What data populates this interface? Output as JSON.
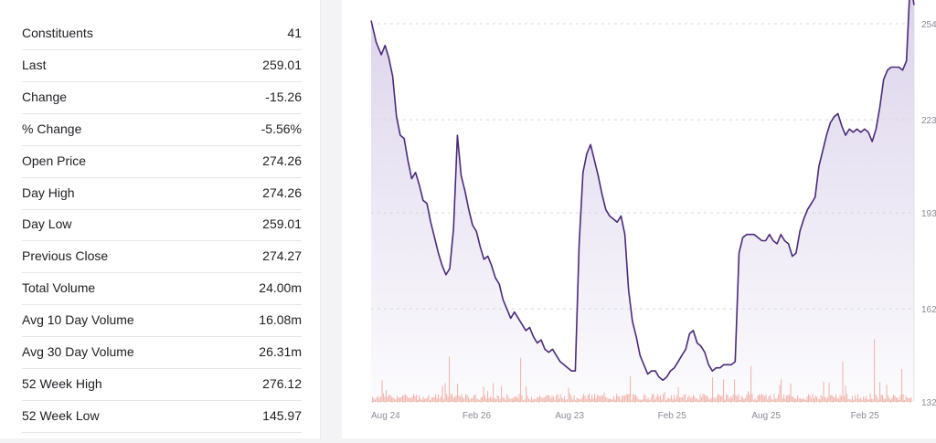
{
  "stats": [
    {
      "label": "Constituents",
      "value": "41"
    },
    {
      "label": "Last",
      "value": "259.01"
    },
    {
      "label": "Change",
      "value": "-15.26"
    },
    {
      "label": "% Change",
      "value": "-5.56%"
    },
    {
      "label": "Open Price",
      "value": "274.26"
    },
    {
      "label": "Day High",
      "value": "274.26"
    },
    {
      "label": "Day Low",
      "value": "259.01"
    },
    {
      "label": "Previous Close",
      "value": "274.27"
    },
    {
      "label": "Total Volume",
      "value": "24.00m"
    },
    {
      "label": "Avg 10 Day Volume",
      "value": "16.08m"
    },
    {
      "label": "Avg 30 Day Volume",
      "value": "26.31m"
    },
    {
      "label": "52 Week High",
      "value": "276.12"
    },
    {
      "label": "52 Week Low",
      "value": "145.97"
    }
  ],
  "chart_data": {
    "type": "line",
    "title": "",
    "xlabel": "",
    "ylabel": "",
    "x_ticks": [
      "Aug 24",
      "Feb 26",
      "Aug 23",
      "Feb 25",
      "Aug 25",
      "Feb 25"
    ],
    "y_ticks": [
      132,
      162,
      193,
      223,
      254
    ],
    "ylim": [
      132,
      264
    ],
    "grid": true,
    "price": [
      [
        0,
        255
      ],
      [
        4,
        248
      ],
      [
        8,
        244
      ],
      [
        11,
        247
      ],
      [
        14,
        243
      ],
      [
        17,
        237
      ],
      [
        20,
        224
      ],
      [
        23,
        218
      ],
      [
        26,
        217
      ],
      [
        29,
        210
      ],
      [
        32,
        204
      ],
      [
        35,
        206
      ],
      [
        38,
        202
      ],
      [
        41,
        197
      ],
      [
        44,
        196
      ],
      [
        47,
        190
      ],
      [
        50,
        185
      ],
      [
        53,
        180
      ],
      [
        56,
        176
      ],
      [
        59,
        173
      ],
      [
        62,
        175
      ],
      [
        65,
        188
      ],
      [
        68,
        218
      ],
      [
        71,
        205
      ],
      [
        74,
        200
      ],
      [
        77,
        194
      ],
      [
        80,
        189
      ],
      [
        83,
        187
      ],
      [
        86,
        182
      ],
      [
        89,
        178
      ],
      [
        92,
        179
      ],
      [
        95,
        176
      ],
      [
        98,
        172
      ],
      [
        101,
        170
      ],
      [
        104,
        165
      ],
      [
        107,
        162
      ],
      [
        110,
        159
      ],
      [
        113,
        161
      ],
      [
        116,
        159
      ],
      [
        119,
        157
      ],
      [
        122,
        155
      ],
      [
        125,
        156
      ],
      [
        128,
        153
      ],
      [
        131,
        151
      ],
      [
        134,
        152
      ],
      [
        137,
        149
      ],
      [
        140,
        148
      ],
      [
        143,
        149
      ],
      [
        146,
        147
      ],
      [
        149,
        145
      ],
      [
        152,
        144
      ],
      [
        155,
        143
      ],
      [
        158,
        142
      ],
      [
        161,
        142
      ],
      [
        164,
        183
      ],
      [
        167,
        206
      ],
      [
        170,
        212
      ],
      [
        173,
        215
      ],
      [
        176,
        210
      ],
      [
        179,
        205
      ],
      [
        182,
        199
      ],
      [
        185,
        194
      ],
      [
        188,
        192
      ],
      [
        191,
        191
      ],
      [
        194,
        190
      ],
      [
        197,
        192
      ],
      [
        200,
        186
      ],
      [
        203,
        168
      ],
      [
        206,
        158
      ],
      [
        209,
        153
      ],
      [
        212,
        147
      ],
      [
        215,
        144
      ],
      [
        218,
        141
      ],
      [
        221,
        142
      ],
      [
        224,
        142
      ],
      [
        227,
        140
      ],
      [
        230,
        139
      ],
      [
        233,
        140
      ],
      [
        236,
        142
      ],
      [
        239,
        143
      ],
      [
        242,
        145
      ],
      [
        245,
        147
      ],
      [
        248,
        149
      ],
      [
        251,
        154
      ],
      [
        254,
        155
      ],
      [
        257,
        151
      ],
      [
        260,
        150
      ],
      [
        263,
        148
      ],
      [
        266,
        144
      ],
      [
        269,
        142
      ],
      [
        272,
        143
      ],
      [
        275,
        143
      ],
      [
        278,
        144
      ],
      [
        281,
        144
      ],
      [
        284,
        144
      ],
      [
        287,
        145
      ],
      [
        290,
        180
      ],
      [
        293,
        185
      ],
      [
        296,
        186
      ],
      [
        299,
        186
      ],
      [
        302,
        186
      ],
      [
        305,
        185
      ],
      [
        308,
        184
      ],
      [
        311,
        184
      ],
      [
        314,
        186
      ],
      [
        317,
        184
      ],
      [
        320,
        183
      ],
      [
        323,
        186
      ],
      [
        326,
        184
      ],
      [
        329,
        183
      ],
      [
        332,
        179
      ],
      [
        335,
        180
      ],
      [
        338,
        187
      ],
      [
        341,
        191
      ],
      [
        344,
        194
      ],
      [
        347,
        196
      ],
      [
        350,
        198
      ],
      [
        353,
        208
      ],
      [
        356,
        213
      ],
      [
        359,
        218
      ],
      [
        362,
        222
      ],
      [
        365,
        224
      ],
      [
        368,
        225
      ],
      [
        371,
        221
      ],
      [
        374,
        218
      ],
      [
        377,
        220
      ],
      [
        380,
        219
      ],
      [
        383,
        220
      ],
      [
        386,
        219
      ],
      [
        389,
        220
      ],
      [
        392,
        219
      ],
      [
        395,
        216
      ],
      [
        398,
        220
      ],
      [
        401,
        227
      ],
      [
        404,
        236
      ],
      [
        407,
        239
      ],
      [
        410,
        240
      ],
      [
        413,
        240
      ],
      [
        416,
        240
      ],
      [
        419,
        239
      ],
      [
        422,
        242
      ],
      [
        425,
        268
      ],
      [
        428,
        260
      ]
    ],
    "volume_note": "bars shown as relative heights"
  },
  "colors": {
    "line": "#4a2a7a",
    "fill_top": "#d9d0ea",
    "volume": "#f2a796",
    "grid": "#d8d8df",
    "axis_text": "#8a8a95"
  }
}
